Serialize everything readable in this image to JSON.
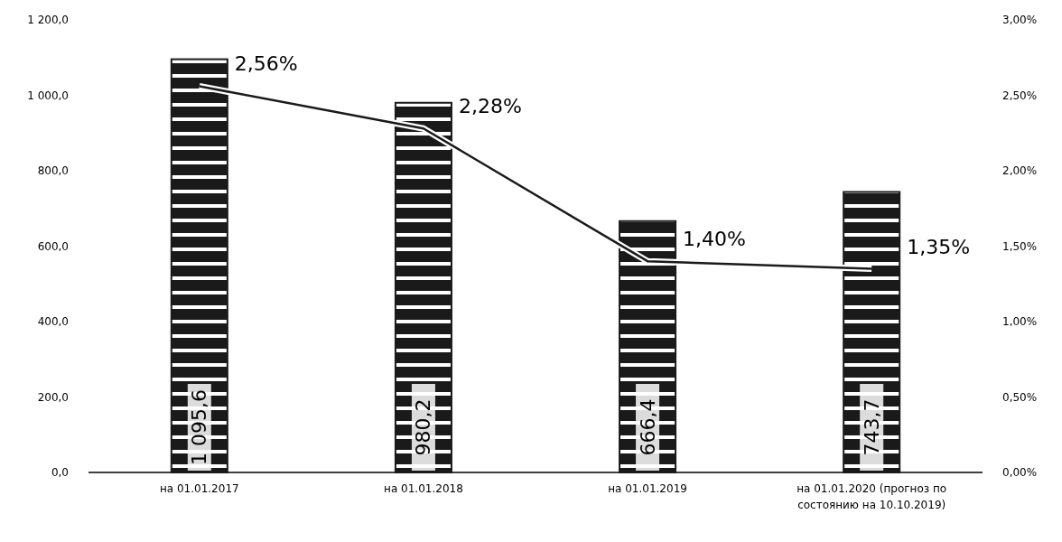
{
  "chart_data": {
    "type": "bar",
    "categories": [
      "на 01.01.2017",
      "на 01.01.2018",
      "на 01.01.2019",
      "на 01.01.2020 (прогноз по состоянию на 10.10.2019)"
    ],
    "series": [
      {
        "color": "#1a1a1a",
        "values": [
          1095.6,
          980.2,
          666.4,
          743.7
        ],
        "value_labels": [
          "1 095,6",
          "980,2",
          "666,4",
          "743,7"
        ]
      },
      {
        "type": "line",
        "axis": "y2",
        "color": "#1a1a1a",
        "values": [
          2.56,
          2.28,
          1.4,
          1.35
        ],
        "value_labels": [
          "2,56%",
          "2,28%",
          "1,40%",
          "1,35%"
        ]
      }
    ],
    "ylim": [
      0,
      1200
    ],
    "yticks": [
      {
        "value": 0,
        "label": "0,0"
      },
      {
        "value": 200,
        "label": "200,0"
      },
      {
        "value": 400,
        "label": "400,0"
      },
      {
        "value": 600,
        "label": "600,0"
      },
      {
        "value": 800,
        "label": "800,0"
      },
      {
        "value": 1000,
        "label": "1 000,0"
      },
      {
        "value": 1200,
        "label": "1 200,0"
      }
    ],
    "y2lim": [
      0,
      3
    ],
    "y2ticks": [
      {
        "value": 0,
        "label": "0,00%"
      },
      {
        "value": 0.5,
        "label": "0,50%"
      },
      {
        "value": 1,
        "label": "1,00%"
      },
      {
        "value": 1.5,
        "label": "1,50%"
      },
      {
        "value": 2,
        "label": "2,00%"
      },
      {
        "value": 2.5,
        "label": "2,50%"
      },
      {
        "value": 3,
        "label": "3,00%"
      }
    ],
    "grid": false,
    "marker": "none",
    "line_style": "solid"
  }
}
